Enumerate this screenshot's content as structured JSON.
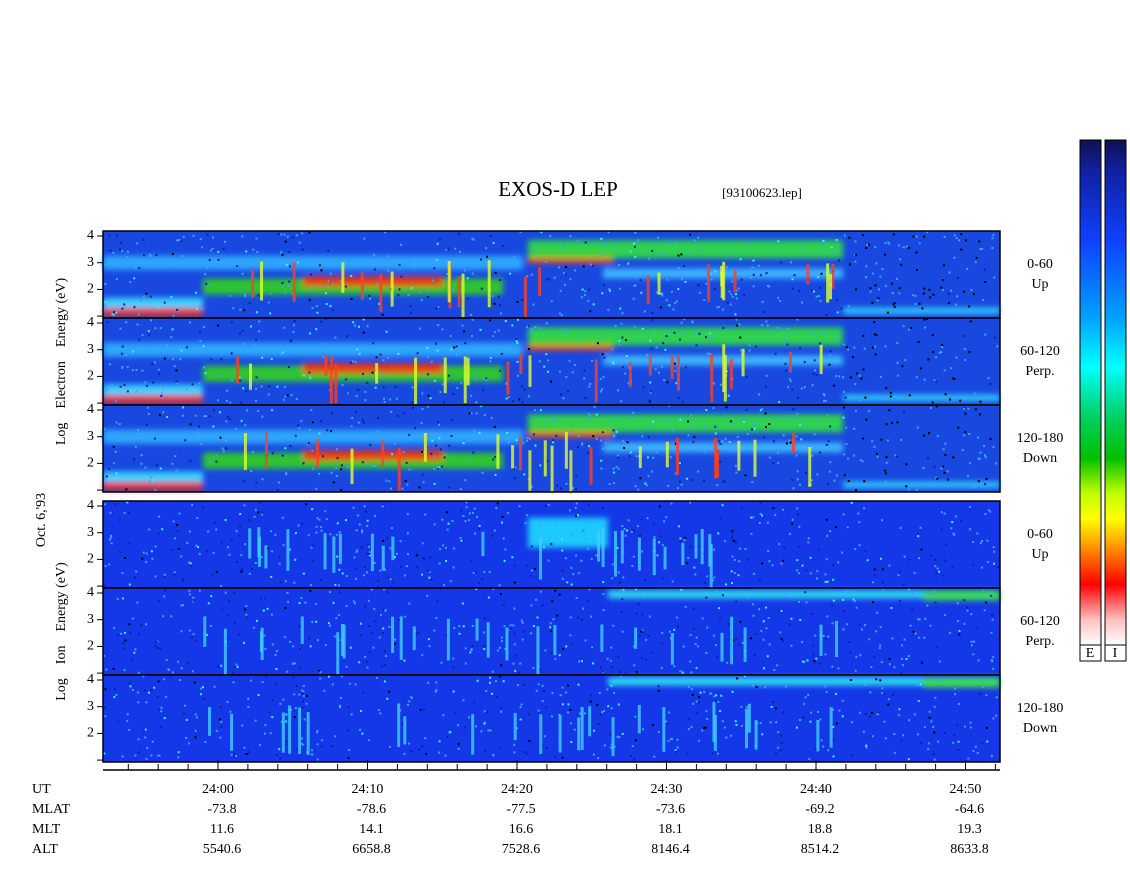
{
  "header": {
    "title": "EXOS-D LEP",
    "file": "[93100623.lep]",
    "date": "Oct. 6,'93"
  },
  "y_tick_labels": [
    "4",
    "3",
    "2"
  ],
  "groups": [
    {
      "axis_label": [
        "Log",
        "Electron",
        "Energy (eV)"
      ],
      "panels": [
        {
          "label": [
            "0-60",
            "Up"
          ]
        },
        {
          "label": [
            "60-120",
            "Perp."
          ]
        },
        {
          "label": [
            "120-180",
            "Down"
          ]
        }
      ]
    },
    {
      "axis_label": [
        "Log",
        "Ion",
        "Energy (eV)"
      ],
      "panels": [
        {
          "label": [
            "0-60",
            "Up"
          ]
        },
        {
          "label": [
            "60-120",
            "Perp."
          ]
        },
        {
          "label": [
            "120-180",
            "Down"
          ]
        }
      ]
    }
  ],
  "colorbar_labels": [
    "E",
    "I"
  ],
  "time_table": {
    "row_labels": [
      "UT",
      "MLAT",
      "MLT",
      "ALT"
    ],
    "columns": [
      [
        "24:00",
        "-73.8",
        "11.6",
        "5540.6"
      ],
      [
        "24:10",
        "-78.6",
        "14.1",
        "6658.8"
      ],
      [
        "24:20",
        "-77.5",
        "16.6",
        "7528.6"
      ],
      [
        "24:30",
        "-73.6",
        "18.1",
        "8146.4"
      ],
      [
        "24:40",
        "-69.2",
        "18.8",
        "8514.2"
      ],
      [
        "24:50",
        "-64.6",
        "19.3",
        "8633.8"
      ]
    ]
  }
}
